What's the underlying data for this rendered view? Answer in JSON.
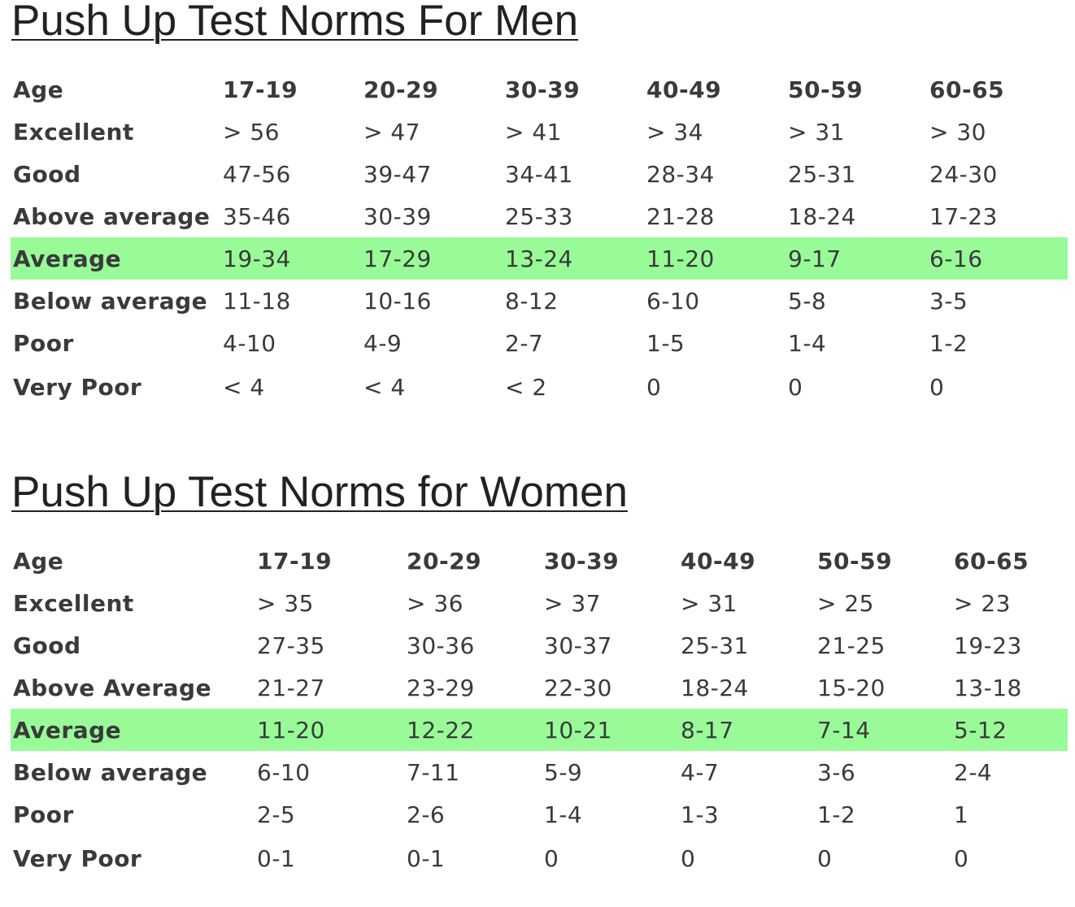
{
  "men": {
    "title": "Push Up Test Norms For Men",
    "header_label": "Age",
    "age_groups": [
      "17-19",
      "20-29",
      "30-39",
      "40-49",
      "50-59",
      "60-65"
    ],
    "rows": [
      {
        "label": "Excellent",
        "values": [
          "> 56",
          "> 47",
          "> 41",
          "> 34",
          "> 31",
          "> 30"
        ]
      },
      {
        "label": "Good",
        "values": [
          "47-56",
          "39-47",
          "34-41",
          "28-34",
          "25-31",
          "24-30"
        ]
      },
      {
        "label": "Above average",
        "values": [
          "35-46",
          "30-39",
          "25-33",
          "21-28",
          "18-24",
          "17-23"
        ]
      },
      {
        "label": "Average",
        "values": [
          "19-34",
          "17-29",
          "13-24",
          "11-20",
          "9-17",
          "6-16"
        ]
      },
      {
        "label": "Below average",
        "values": [
          "11-18",
          "10-16",
          "8-12",
          "6-10",
          "5-8",
          "3-5"
        ]
      },
      {
        "label": "Poor",
        "values": [
          "4-10",
          "4-9",
          "2-7",
          "1-5",
          "1-4",
          "1-2"
        ]
      },
      {
        "label": "Very Poor",
        "values": [
          "< 4",
          "< 4",
          "< 2",
          "0",
          "0",
          "0"
        ]
      }
    ]
  },
  "women": {
    "title": "Push Up Test Norms for Women",
    "header_label": "Age",
    "age_groups": [
      "17-19",
      "20-29",
      "30-39",
      "40-49",
      "50-59",
      "60-65"
    ],
    "rows": [
      {
        "label": "Excellent",
        "values": [
          "> 35",
          "> 36",
          "> 37",
          "> 31",
          "> 25",
          "> 23"
        ]
      },
      {
        "label": "Good",
        "values": [
          "27-35",
          "30-36",
          "30-37",
          "25-31",
          "21-25",
          "19-23"
        ]
      },
      {
        "label": "Above Average",
        "values": [
          "21-27",
          "23-29",
          "22-30",
          "18-24",
          "15-20",
          "13-18"
        ]
      },
      {
        "label": "Average",
        "values": [
          "11-20",
          "12-22",
          "10-21",
          "8-17",
          "7-14",
          "5-12"
        ]
      },
      {
        "label": "Below average",
        "values": [
          "6-10",
          "7-11",
          "5-9",
          "4-7",
          "3-6",
          "2-4"
        ]
      },
      {
        "label": "Poor",
        "values": [
          "2-5",
          "2-6",
          "1-4",
          "1-3",
          "1-2",
          "1"
        ]
      },
      {
        "label": "Very Poor",
        "values": [
          "0-1",
          "0-1",
          "0",
          "0",
          "0",
          "0"
        ]
      }
    ]
  },
  "highlight_row_label": "Average",
  "highlight_color": "#98fb98",
  "text_color": "#3a3a3a",
  "title_color": "#222222"
}
